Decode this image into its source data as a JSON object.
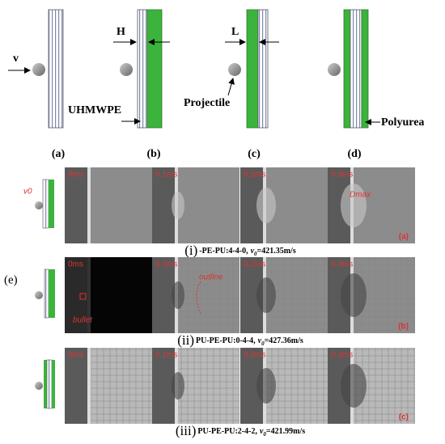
{
  "schematics": {
    "labels": [
      "(a)",
      "(b)",
      "(c)",
      "(d)"
    ],
    "velocity": "v",
    "thickness_h": "H",
    "thickness_l": "L",
    "uhmwpe": "UHMWPE",
    "projectile": "Projectile",
    "polyurea": "Polyurea"
  },
  "experiments": {
    "label": "(e)",
    "rows": [
      {
        "times": [
          "0ms",
          "0.1ms",
          "0.2ms",
          "0.3ms"
        ],
        "numeral": "(i)",
        "config": "-PE-PU:4-4-0,",
        "velocity_symbol": "v",
        "velocity_subscript": "0",
        "velocity_value": "=421.35m/s",
        "panel": "(a)",
        "annotations": [
          "v0",
          "Dmax"
        ]
      },
      {
        "times": [
          "0ms",
          "0.1ms",
          "0.2ms",
          "0.3ms"
        ],
        "numeral": "(ii)",
        "config": "PU-PE-PU:0-4-4,",
        "velocity_symbol": "v",
        "velocity_subscript": "0",
        "velocity_value": "=427.36m/s",
        "panel": "(b)",
        "annotations": [
          "bullet",
          "outline"
        ]
      },
      {
        "times": [
          "0ms",
          "0.1ms",
          "0.2ms",
          "0.3ms"
        ],
        "numeral": "(iii)",
        "config": "PU-PE-PU:2-4-2,",
        "velocity_symbol": "v",
        "velocity_subscript": "0",
        "velocity_value": "=421.99m/s",
        "panel": "(c)",
        "annotations": []
      }
    ]
  }
}
